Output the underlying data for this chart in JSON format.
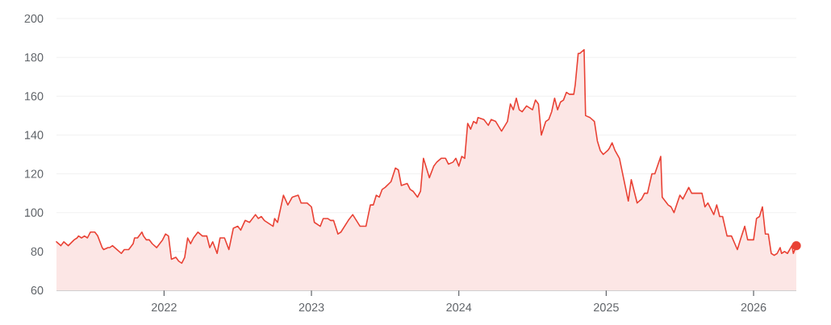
{
  "chart_data": {
    "type": "area",
    "x": [
      2021.27,
      2021.3,
      2021.32,
      2021.35,
      2021.39,
      2021.41,
      2021.42,
      2021.44,
      2021.46,
      2021.48,
      2021.5,
      2021.53,
      2021.55,
      2021.58,
      2021.59,
      2021.62,
      2021.63,
      2021.65,
      2021.68,
      2021.71,
      2021.73,
      2021.76,
      2021.79,
      2021.8,
      2021.82,
      2021.85,
      2021.86,
      2021.88,
      2021.9,
      2021.92,
      2021.95,
      2021.97,
      2021.99,
      2022.01,
      2022.03,
      2022.05,
      2022.08,
      2022.1,
      2022.12,
      2022.14,
      2022.16,
      2022.18,
      2022.2,
      2022.23,
      2022.26,
      2022.29,
      2022.31,
      2022.33,
      2022.36,
      2022.38,
      2022.41,
      2022.44,
      2022.47,
      2022.5,
      2022.52,
      2022.55,
      2022.58,
      2022.62,
      2022.64,
      2022.66,
      2022.68,
      2022.74,
      2022.75,
      2022.77,
      2022.81,
      2022.84,
      2022.87,
      2022.91,
      2022.93,
      2022.97,
      2023.0,
      2023.02,
      2023.06,
      2023.08,
      2023.11,
      2023.13,
      2023.15,
      2023.18,
      2023.2,
      2023.25,
      2023.28,
      2023.33,
      2023.37,
      2023.4,
      2023.42,
      2023.44,
      2023.46,
      2023.48,
      2023.5,
      2023.54,
      2023.57,
      2023.59,
      2023.61,
      2023.65,
      2023.67,
      2023.69,
      2023.72,
      2023.74,
      2023.76,
      2023.78,
      2023.8,
      2023.83,
      2023.85,
      2023.88,
      2023.91,
      2023.93,
      2023.96,
      2023.98,
      2024.0,
      2024.02,
      2024.04,
      2024.06,
      2024.08,
      2024.1,
      2024.12,
      2024.13,
      2024.17,
      2024.2,
      2024.22,
      2024.25,
      2024.29,
      2024.33,
      2024.35,
      2024.37,
      2024.39,
      2024.41,
      2024.43,
      2024.46,
      2024.5,
      2024.52,
      2024.54,
      2024.56,
      2024.59,
      2024.61,
      2024.63,
      2024.65,
      2024.67,
      2024.69,
      2024.71,
      2024.73,
      2024.75,
      2024.78,
      2024.79,
      2024.81,
      2024.82,
      2024.85,
      2024.86,
      2024.89,
      2024.92,
      2024.94,
      2024.96,
      2024.98,
      2025.01,
      2025.02,
      2025.04,
      2025.06,
      2025.09,
      2025.12,
      2025.15,
      2025.17,
      2025.21,
      2025.24,
      2025.26,
      2025.28,
      2025.31,
      2025.33,
      2025.37,
      2025.38,
      2025.42,
      2025.44,
      2025.46,
      2025.5,
      2025.52,
      2025.56,
      2025.58,
      2025.6,
      2025.62,
      2025.65,
      2025.67,
      2025.69,
      2025.73,
      2025.75,
      2025.77,
      2025.79,
      2025.82,
      2025.85,
      2025.89,
      2025.91,
      2025.94,
      2025.96,
      2026.0,
      2026.02,
      2026.04,
      2026.06,
      2026.08,
      2026.1,
      2026.12,
      2026.14,
      2026.16,
      2026.18,
      2026.19,
      2026.21,
      2026.23,
      2026.26,
      2026.27,
      2026.29
    ],
    "series": [
      {
        "color": "#e94235",
        "values": [
          85,
          83,
          85,
          83,
          86,
          87,
          88,
          87,
          88,
          87,
          90,
          90,
          88,
          82,
          81,
          82,
          82,
          83,
          81,
          79,
          81,
          81,
          84,
          87,
          87,
          90,
          88,
          86,
          86,
          84,
          82,
          84,
          86,
          89,
          88,
          76,
          77,
          75,
          74,
          77,
          87,
          84,
          87,
          90,
          88,
          88,
          82,
          85,
          79,
          87,
          87,
          81,
          92,
          93,
          91,
          96,
          95,
          99,
          97,
          98,
          96,
          93,
          97,
          95,
          109,
          104,
          108,
          109,
          105,
          105,
          103,
          95,
          93,
          97,
          97,
          96,
          96,
          89,
          90,
          96,
          99,
          93,
          93,
          104,
          104,
          109,
          108,
          112,
          113,
          116,
          123,
          122,
          114,
          115,
          112,
          111,
          108,
          111,
          128,
          123,
          118,
          124,
          126,
          128,
          128,
          125,
          126,
          128,
          124,
          129,
          128,
          146,
          143,
          147,
          146,
          149,
          148,
          145,
          148,
          147,
          142,
          147,
          156,
          153,
          159,
          153,
          152,
          155,
          153,
          158,
          156,
          140,
          147,
          148,
          152,
          159,
          153,
          157,
          158,
          162,
          161,
          161,
          166,
          182,
          182,
          184,
          150,
          149,
          147,
          137,
          132,
          130,
          132,
          133,
          136,
          132,
          128,
          117,
          106,
          117,
          105,
          107,
          110,
          110,
          120,
          120,
          129,
          108,
          104,
          103,
          100,
          109,
          107,
          113,
          110,
          110,
          110,
          110,
          103,
          105,
          99,
          104,
          98,
          98,
          88,
          88,
          81,
          86,
          93,
          86,
          86,
          97,
          98,
          103,
          89,
          89,
          79,
          78,
          79,
          82,
          79,
          80,
          79,
          83,
          79,
          83
        ]
      },
      {
        "type": "scatter",
        "x": [
          2026.29
        ],
        "values": [
          83
        ],
        "color": "#e94235"
      }
    ],
    "xlim": [
      2021.27,
      2026.29
    ],
    "ylim": [
      60,
      200
    ],
    "xticks": [
      2022,
      2023,
      2024,
      2025,
      2026
    ],
    "yticks": [
      60,
      80,
      100,
      120,
      140,
      160,
      180,
      200
    ],
    "grid": "y"
  }
}
